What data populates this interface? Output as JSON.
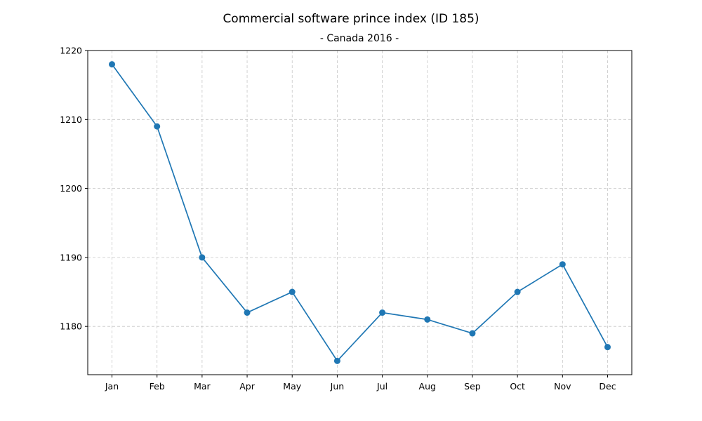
{
  "chart_data": {
    "type": "line",
    "title": "Commercial software prince index (ID 185)",
    "subtitle": "- Canada 2016 -",
    "categories": [
      "Jan",
      "Feb",
      "Mar",
      "Apr",
      "May",
      "Jun",
      "Jul",
      "Aug",
      "Sep",
      "Oct",
      "Nov",
      "Dec"
    ],
    "values": [
      1218,
      1209,
      1190,
      1182,
      1185,
      1175,
      1182,
      1181,
      1179,
      1185,
      1189,
      1177
    ],
    "ylim": [
      1173,
      1220
    ],
    "yticks": [
      1180,
      1190,
      1200,
      1210,
      1220
    ],
    "grid": true,
    "color": "#1f77b4"
  }
}
